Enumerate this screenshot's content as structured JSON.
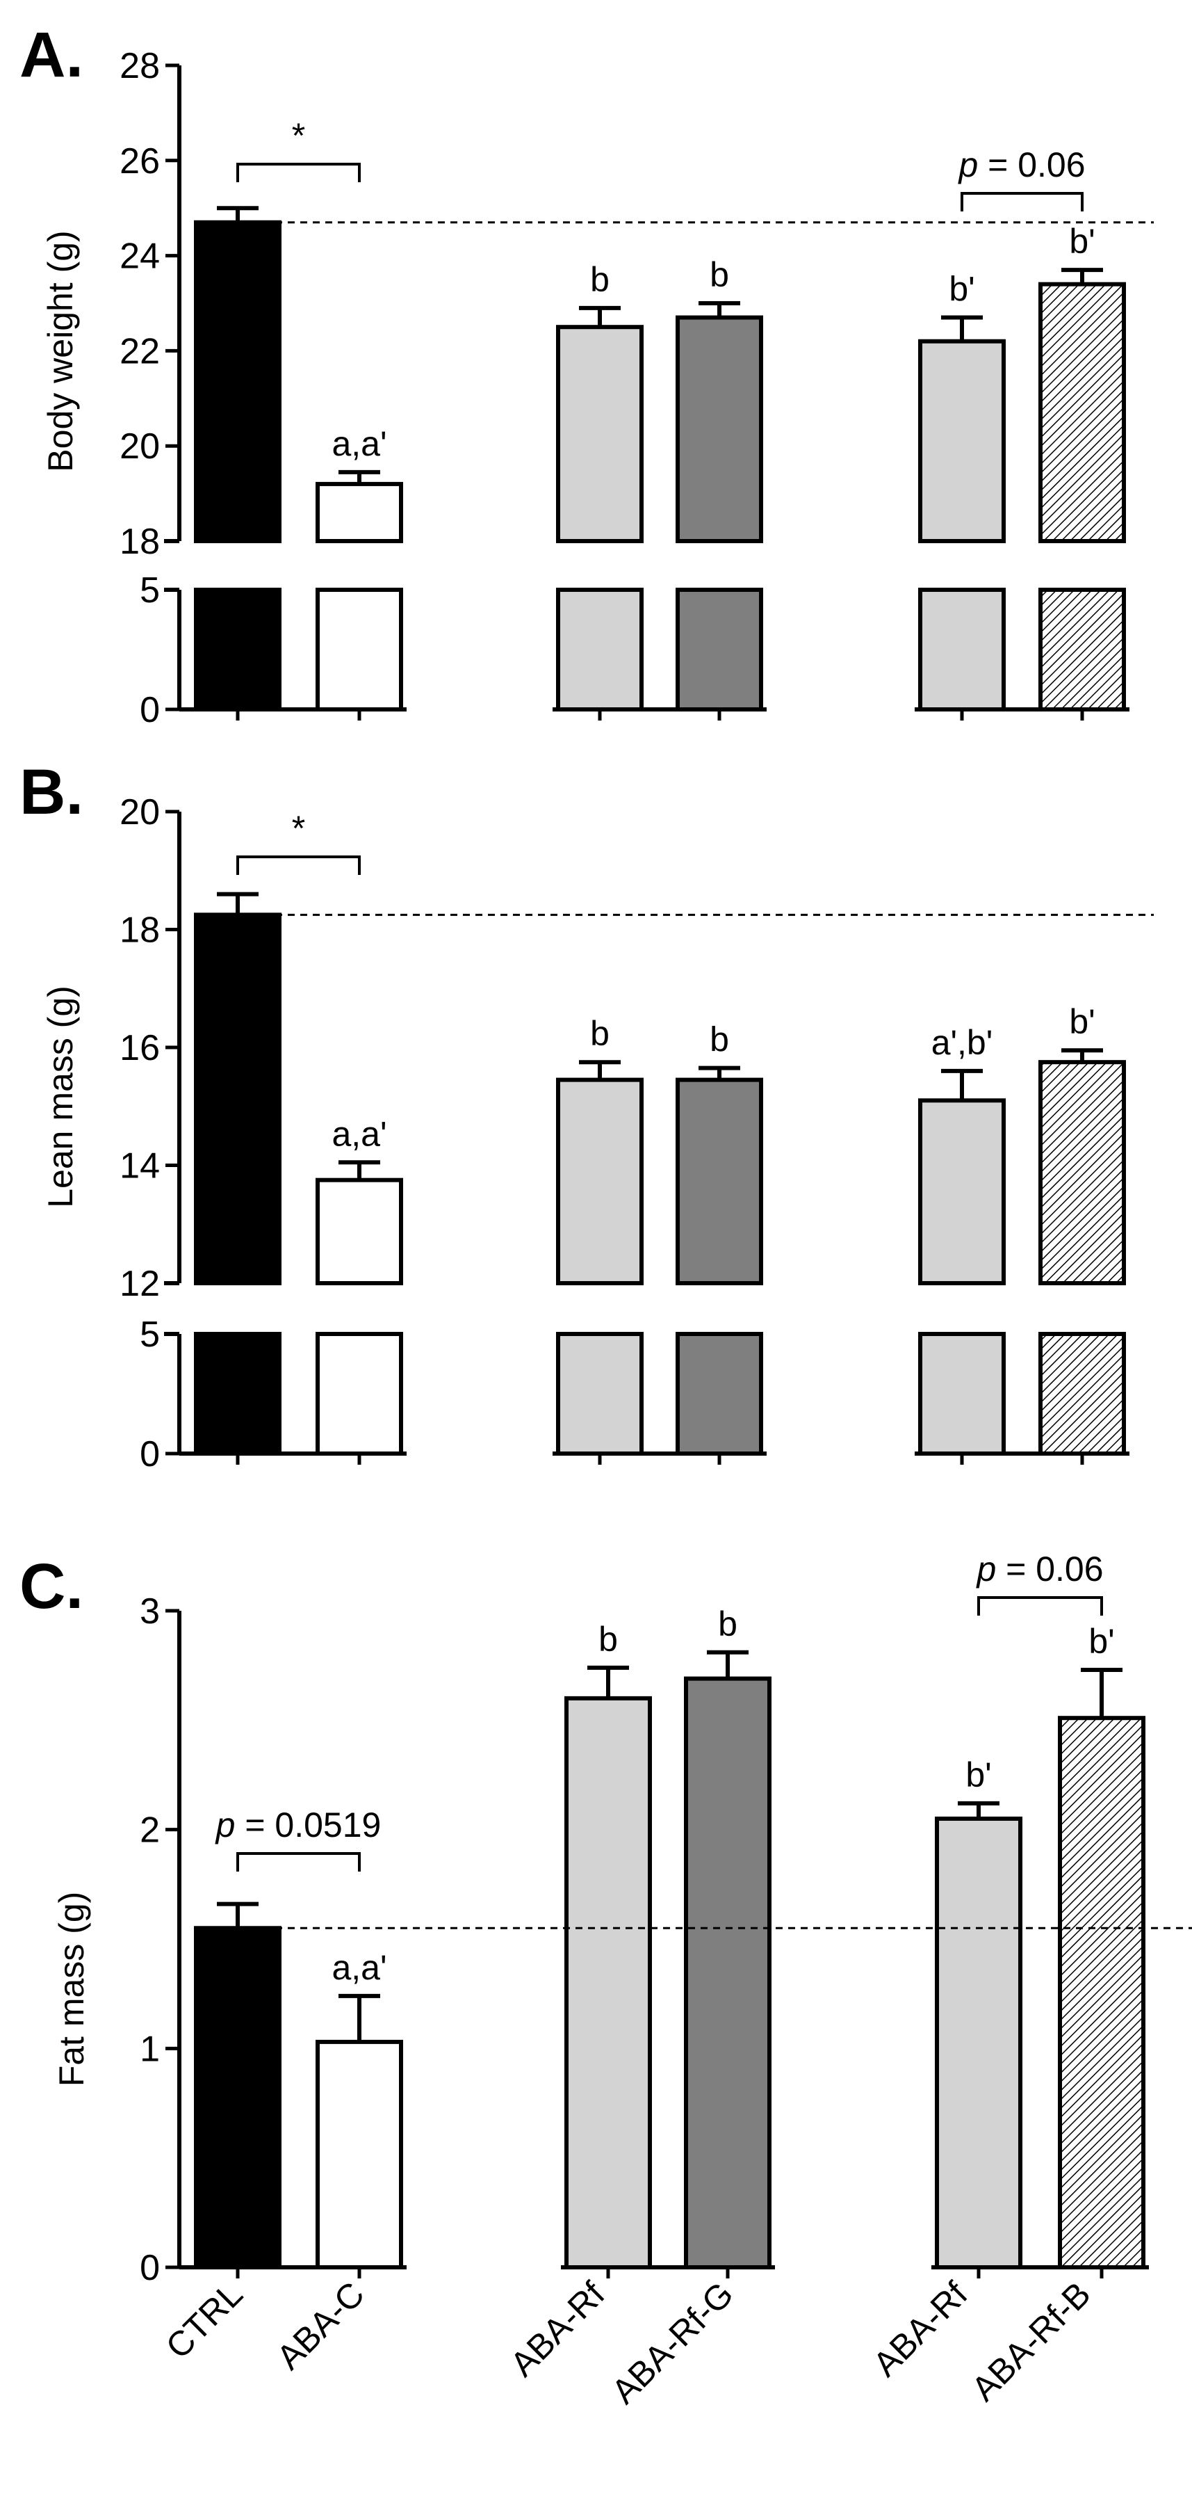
{
  "chart_data": [
    {
      "type": "bar",
      "panel": "A.",
      "ylabel": "Body weight (g)",
      "categories": [
        "CTRL",
        "ABA-C",
        "ABA-Rf",
        "ABA-Rf-G",
        "ABA-Rf",
        "ABA-Rf-B"
      ],
      "values": [
        24.7,
        19.2,
        22.5,
        22.7,
        22.2,
        23.4
      ],
      "errors": [
        0.3,
        0.25,
        0.4,
        0.3,
        0.5,
        0.3
      ],
      "fills": [
        "#000000",
        "#ffffff",
        "#d3d3d3",
        "#7f7f7f",
        "#d3d3d3",
        "hatch"
      ],
      "labels": [
        "",
        "a,a'",
        "b",
        "b",
        "b'",
        "b'"
      ],
      "ylim_upper": [
        18,
        28
      ],
      "ylim_lower": [
        0,
        5
      ],
      "yticks_upper": [
        "18",
        "20",
        "22",
        "24",
        "26",
        "28"
      ],
      "yticks_lower": [
        "0",
        "5"
      ],
      "reference_line": 24.7,
      "brackets": [
        {
          "from": 0,
          "to": 1,
          "label": "*"
        },
        {
          "from": 4,
          "to": 5,
          "p": "p",
          "label": " = 0.06"
        }
      ]
    },
    {
      "type": "bar",
      "panel": "B.",
      "ylabel": "Lean mass (g)",
      "categories": [
        "CTRL",
        "ABA-C",
        "ABA-Rf",
        "ABA-Rf-G",
        "ABA-Rf",
        "ABA-Rf-B"
      ],
      "values": [
        18.25,
        13.75,
        15.45,
        15.45,
        15.1,
        15.75
      ],
      "errors": [
        0.35,
        0.3,
        0.3,
        0.2,
        0.5,
        0.2
      ],
      "fills": [
        "#000000",
        "#ffffff",
        "#d3d3d3",
        "#7f7f7f",
        "#d3d3d3",
        "hatch"
      ],
      "labels": [
        "",
        "a,a'",
        "b",
        "b",
        "a',b'",
        "b'"
      ],
      "ylim_upper": [
        12,
        20
      ],
      "ylim_lower": [
        0,
        5
      ],
      "yticks_upper": [
        "12",
        "14",
        "16",
        "18",
        "20"
      ],
      "yticks_lower": [
        "0",
        "5"
      ],
      "reference_line": 18.25,
      "brackets": [
        {
          "from": 0,
          "to": 1,
          "label": "*"
        }
      ]
    },
    {
      "type": "bar",
      "panel": "C.",
      "ylabel": "Fat mass (g)",
      "categories": [
        "CTRL",
        "ABA-C",
        "ABA-Rf",
        "ABA-Rf-G",
        "ABA-Rf",
        "ABA-Rf-B"
      ],
      "values": [
        1.55,
        1.03,
        2.6,
        2.69,
        2.05,
        2.51
      ],
      "errors": [
        0.11,
        0.21,
        0.14,
        0.12,
        0.07,
        0.22
      ],
      "fills": [
        "#000000",
        "#ffffff",
        "#d3d3d3",
        "#7f7f7f",
        "#d3d3d3",
        "hatch"
      ],
      "labels": [
        "",
        "a,a'",
        "b",
        "b",
        "b'",
        "b'"
      ],
      "ylim": [
        0,
        3
      ],
      "yticks": [
        "0",
        "1",
        "2",
        "3"
      ],
      "reference_line": 1.55,
      "brackets": [
        {
          "from": 0,
          "to": 1,
          "p": "p",
          "label": " = 0.0519"
        },
        {
          "from": 4,
          "to": 5,
          "p": "p",
          "label": " = 0.06"
        }
      ]
    }
  ]
}
